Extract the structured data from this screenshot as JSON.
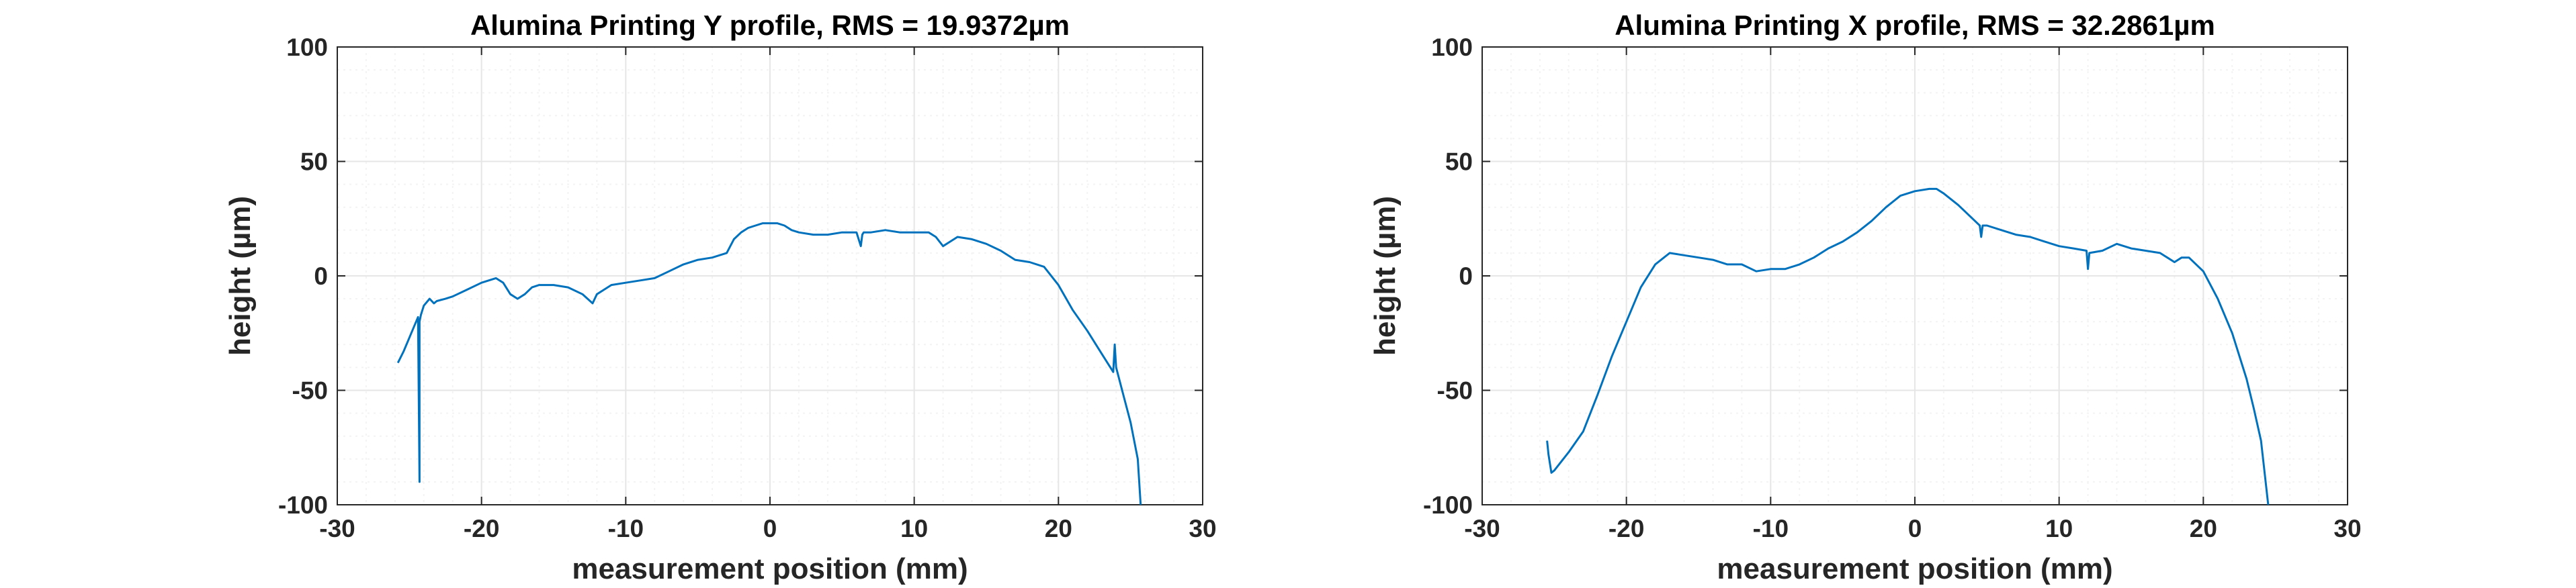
{
  "colors": {
    "line": "#0072BD",
    "axis": "#262626",
    "grid": "#e6e6e6",
    "minor_grid": "#f3f3f3"
  },
  "chart_data": [
    {
      "type": "line",
      "title": "Alumina Printing Y profile, RMS = 19.9372µm",
      "xlabel": "measurement position (mm)",
      "ylabel": "height (µm)",
      "xlim": [
        -30,
        30
      ],
      "ylim": [
        -100,
        100
      ],
      "xticks": [
        -30,
        -20,
        -10,
        0,
        10,
        20,
        30
      ],
      "yticks": [
        -100,
        -50,
        0,
        50,
        100
      ],
      "xtick_labels": [
        "-30",
        "-20",
        "-10",
        "0",
        "10",
        "20",
        "30"
      ],
      "ytick_labels": [
        "-100",
        "-50",
        "0",
        "50",
        "100"
      ],
      "grid": true,
      "series": [
        {
          "x": [
            -25.8,
            -25.4,
            -25.0,
            -24.6,
            -24.4,
            -24.3,
            -24.3,
            -24.2,
            -24.0,
            -23.6,
            -23.3,
            -23.1,
            -22.5,
            -22.0,
            -21.0,
            -20.0,
            -19.0,
            -18.5,
            -18.0,
            -17.5,
            -17.0,
            -16.5,
            -16.0,
            -15.0,
            -14.0,
            -13.0,
            -12.3,
            -12.0,
            -11.5,
            -11.0,
            -10.0,
            -9.0,
            -8.0,
            -7.0,
            -6.0,
            -5.0,
            -4.0,
            -3.0,
            -2.5,
            -2.0,
            -1.5,
            -1.0,
            -0.5,
            0.0,
            0.5,
            1.0,
            1.5,
            2.0,
            3.0,
            4.0,
            5.0,
            6.0,
            6.3,
            6.4,
            6.5,
            7.0,
            8.0,
            9.0,
            10.0,
            11.0,
            11.5,
            12.0,
            12.5,
            13.0,
            14.0,
            15.0,
            16.0,
            17.0,
            18.0,
            19.0,
            20.0,
            21.0,
            22.0,
            23.0,
            23.8,
            23.9,
            24.0,
            24.5,
            25.0,
            25.5,
            25.7
          ],
          "y": [
            -38,
            -33,
            -27,
            -21,
            -18,
            -90,
            -20,
            -17,
            -13,
            -10,
            -12,
            -11,
            -10,
            -9,
            -6,
            -3,
            -1,
            -3,
            -8,
            -10,
            -8,
            -5,
            -4,
            -4,
            -5,
            -8,
            -12,
            -8,
            -6,
            -4,
            -3,
            -2,
            -1,
            2,
            5,
            7,
            8,
            10,
            16,
            19,
            21,
            22,
            23,
            23,
            23,
            22,
            20,
            19,
            18,
            18,
            19,
            19,
            13,
            18,
            19,
            19,
            20,
            19,
            19,
            19,
            17,
            13,
            15,
            17,
            16,
            14,
            11,
            7,
            6,
            4,
            -4,
            -15,
            -24,
            -34,
            -42,
            -30,
            -40,
            -52,
            -64,
            -80,
            -100
          ]
        }
      ]
    },
    {
      "type": "line",
      "title": "Alumina Printing X profile, RMS = 32.2861µm",
      "xlabel": "measurement position (mm)",
      "ylabel": "height (µm)",
      "xlim": [
        -30,
        30
      ],
      "ylim": [
        -100,
        100
      ],
      "xticks": [
        -30,
        -20,
        -10,
        0,
        10,
        20,
        30
      ],
      "yticks": [
        -100,
        -50,
        0,
        50,
        100
      ],
      "xtick_labels": [
        "-30",
        "-20",
        "-10",
        "0",
        "10",
        "20",
        "30"
      ],
      "ytick_labels": [
        "-100",
        "-50",
        "0",
        "50",
        "100"
      ],
      "grid": true,
      "series": [
        {
          "x": [
            -25.5,
            -25.4,
            -25.2,
            -25.0,
            -24.0,
            -23.0,
            -22.0,
            -21.0,
            -20.0,
            -19.0,
            -18.0,
            -17.0,
            -16.0,
            -15.0,
            -14.0,
            -13.0,
            -12.0,
            -11.0,
            -10.0,
            -9.0,
            -8.0,
            -7.0,
            -6.0,
            -5.0,
            -4.0,
            -3.0,
            -2.0,
            -1.0,
            0.0,
            1.0,
            1.5,
            2.0,
            3.0,
            4.0,
            4.5,
            4.6,
            4.7,
            5.0,
            6.0,
            7.0,
            8.0,
            9.0,
            10.0,
            11.0,
            11.9,
            12.0,
            12.1,
            13.0,
            14.0,
            15.0,
            16.0,
            17.0,
            17.5,
            18.0,
            18.5,
            19.0,
            20.0,
            21.0,
            22.0,
            23.0,
            23.5,
            24.0,
            24.5
          ],
          "y": [
            -72,
            -78,
            -86,
            -85,
            -77,
            -68,
            -52,
            -35,
            -20,
            -5,
            5,
            10,
            9,
            8,
            7,
            5,
            5,
            2,
            3,
            3,
            5,
            8,
            12,
            15,
            19,
            24,
            30,
            35,
            37,
            38,
            38,
            36,
            31,
            25,
            22,
            17,
            22,
            22,
            20,
            18,
            17,
            15,
            13,
            12,
            11,
            3,
            10,
            11,
            14,
            12,
            11,
            10,
            8,
            6,
            8,
            8,
            2,
            -10,
            -25,
            -45,
            -58,
            -72,
            -100
          ]
        }
      ]
    }
  ]
}
